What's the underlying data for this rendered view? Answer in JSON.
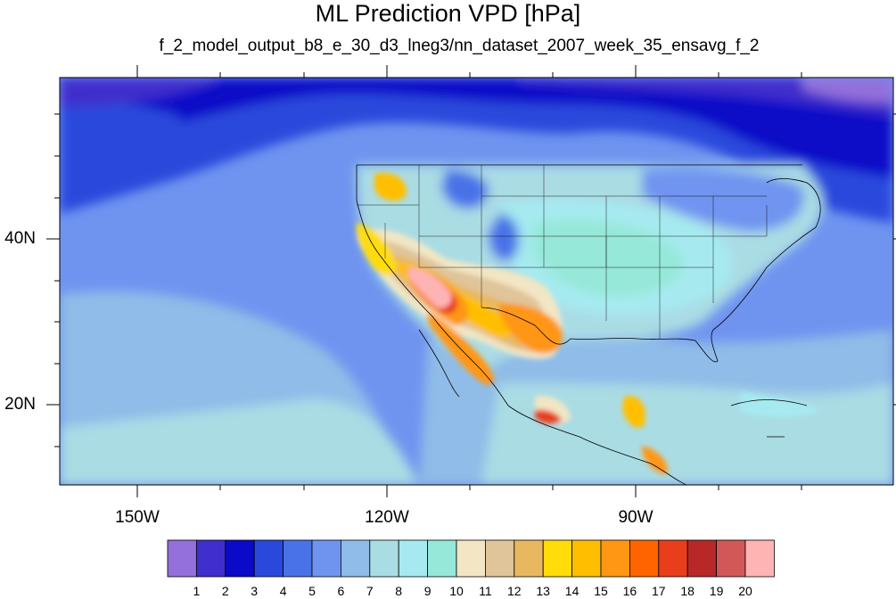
{
  "title": "ML Prediction VPD [hPa]",
  "subtitle": "f_2_model_output_b8_e_30_d3_lneg3/nn_dataset_2007_week_35_ensavg_f_2",
  "map": {
    "lat_labels": [
      "40N",
      "20N"
    ],
    "lon_labels": [
      "150W",
      "120W",
      "90W"
    ]
  },
  "colorbar": {
    "labels": [
      "1",
      "2",
      "3",
      "4",
      "5",
      "6",
      "7",
      "8",
      "9",
      "10",
      "11",
      "12",
      "13",
      "14",
      "15",
      "16",
      "17",
      "18",
      "19",
      "20"
    ],
    "colors": [
      "#9370db",
      "#3f2fcc",
      "#0a0ac8",
      "#2a48dc",
      "#4a72e8",
      "#6f94f0",
      "#8fbce8",
      "#aadce4",
      "#a6eaf0",
      "#96e8d8",
      "#f2e6c4",
      "#e0c49a",
      "#e8b860",
      "#ffdc0a",
      "#ffbf00",
      "#ff9614",
      "#ff6400",
      "#e83e1c",
      "#b82828",
      "#d25858",
      "#ffb4b4"
    ]
  }
}
